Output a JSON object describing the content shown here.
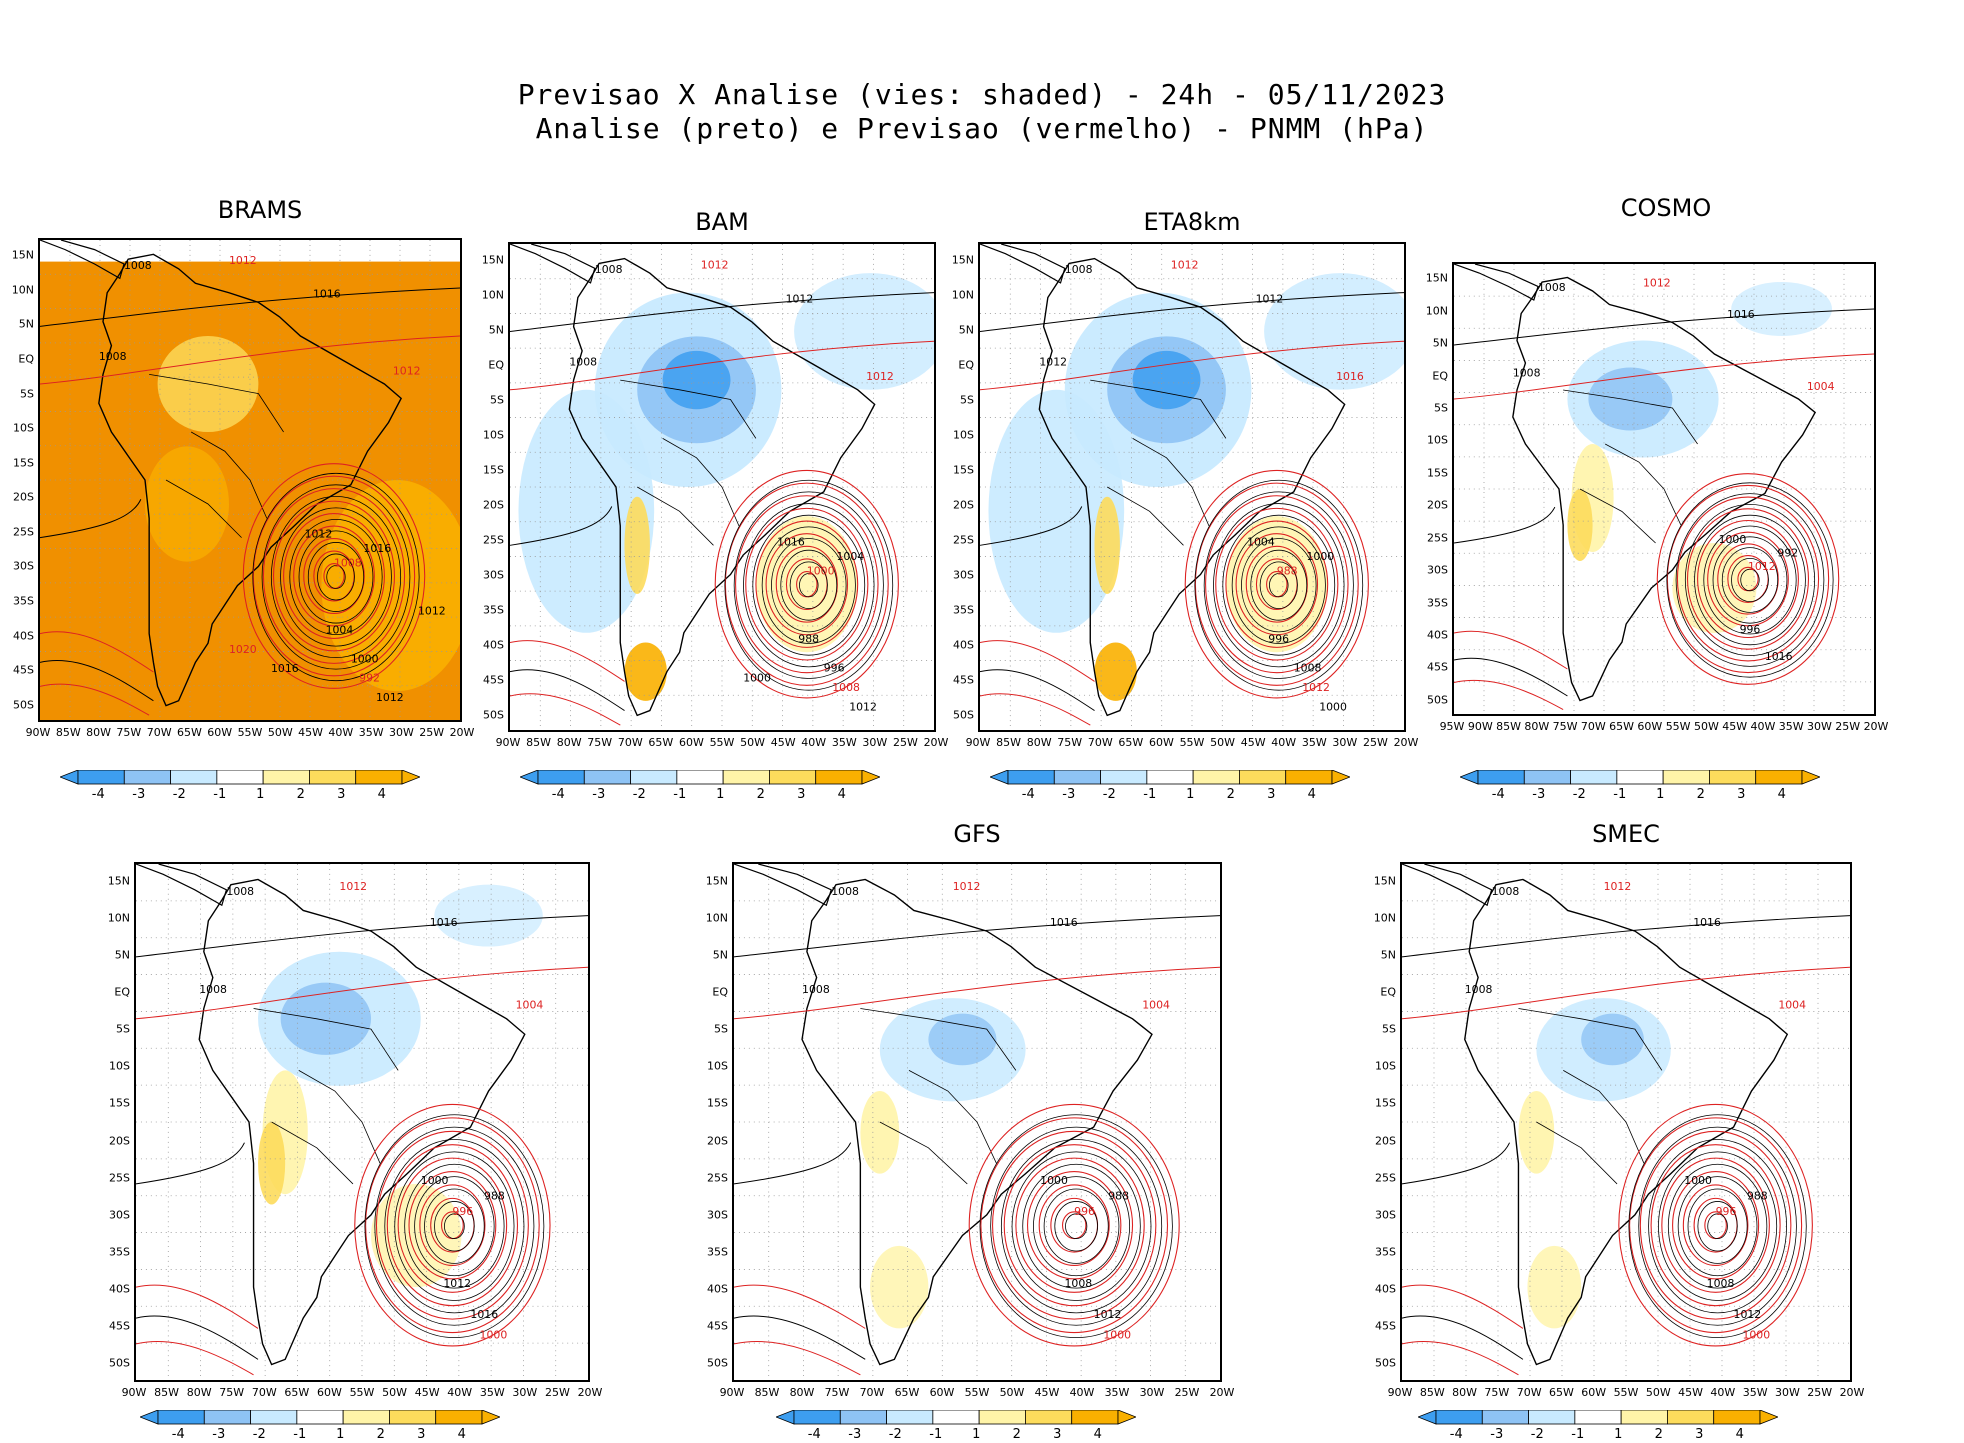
{
  "title": {
    "line1": "Previsao X Analise (vies: shaded) - 24h - 05/11/2023",
    "line2": "Analise (preto) e Previsao (vermelho) - PNMM (hPa)"
  },
  "colors": {
    "analysis_contour": "#000000",
    "forecast_contour": "#dd2222",
    "bias_neg4": "#3d9ef0",
    "bias_neg3": "#8ec3f5",
    "bias_neg2": "#c8eaff",
    "bias_neutral": "#ffffff",
    "bias_pos2": "#fff4a8",
    "bias_pos3": "#fddc5c",
    "bias_pos4": "#f9b000",
    "bias_strong_pos": "#f09000"
  },
  "colorbar_labels": [
    "-4",
    "-3",
    "-2",
    "-1",
    "1",
    "2",
    "3",
    "4"
  ],
  "lat_labels": [
    "15N",
    "10N",
    "5N",
    "EQ",
    "5S",
    "10S",
    "15S",
    "20S",
    "25S",
    "30S",
    "35S",
    "40S",
    "45S",
    "50S"
  ],
  "lon_labels_default": [
    "90W",
    "85W",
    "80W",
    "75W",
    "70W",
    "65W",
    "60W",
    "55W",
    "50W",
    "45W",
    "40W",
    "35W",
    "30W",
    "25W",
    "20W"
  ],
  "lon_labels_cosmo": [
    "95W",
    "90W",
    "85W",
    "80W",
    "75W",
    "70W",
    "65W",
    "60W",
    "55W",
    "50W",
    "45W",
    "40W",
    "35W",
    "30W",
    "25W",
    "20W"
  ],
  "panels": [
    {
      "id": "brams",
      "name": "BRAMS",
      "bias": "strong-positive",
      "isobars": [
        "1008",
        "1012",
        "1016",
        "1008",
        "1012",
        "1012",
        "1016",
        "1008",
        "1004",
        "1000",
        "992",
        "1012",
        "1016",
        "1020",
        "1012"
      ]
    },
    {
      "id": "bam",
      "name": "BAM",
      "bias": "negative-north",
      "isobars": [
        "1008",
        "1012",
        "1012",
        "1008",
        "1012",
        "1016",
        "1004",
        "1000",
        "988",
        "996",
        "1008",
        "1012",
        "1000"
      ]
    },
    {
      "id": "eta",
      "name": "ETA8km",
      "bias": "negative-north",
      "isobars": [
        "1008",
        "1012",
        "1012",
        "1012",
        "1016",
        "1004",
        "1000",
        "988",
        "996",
        "1008",
        "1012",
        "1000"
      ]
    },
    {
      "id": "cosmo",
      "name": "COSMO",
      "bias": "mixed",
      "isobars": [
        "1008",
        "1012",
        "1016",
        "1008",
        "1004",
        "1000",
        "992",
        "1012",
        "996",
        "1016"
      ]
    },
    {
      "id": "unnamed",
      "name": "",
      "bias": "mixed",
      "isobars": [
        "1008",
        "1012",
        "1016",
        "1008",
        "1004",
        "1000",
        "988",
        "996",
        "1012",
        "1016",
        "1000"
      ]
    },
    {
      "id": "gfs",
      "name": "GFS",
      "bias": "mixed-light",
      "isobars": [
        "1008",
        "1012",
        "1016",
        "1008",
        "1004",
        "1000",
        "988",
        "996",
        "1008",
        "1012",
        "1000"
      ]
    },
    {
      "id": "smec",
      "name": "SMEC",
      "bias": "mixed-light",
      "isobars": [
        "1008",
        "1012",
        "1016",
        "1008",
        "1004",
        "1000",
        "988",
        "996",
        "1008",
        "1012",
        "1000"
      ]
    }
  ]
}
